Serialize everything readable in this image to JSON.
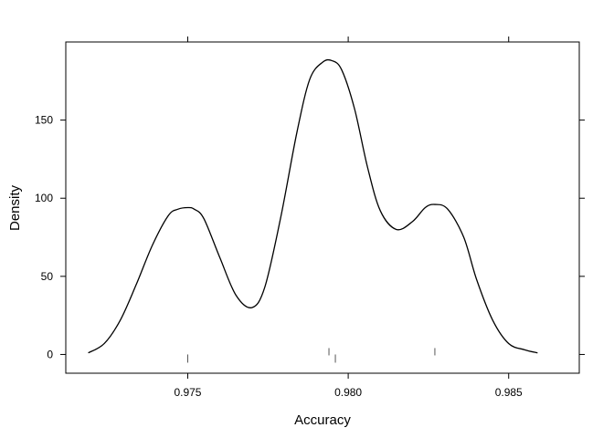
{
  "chart_data": {
    "type": "line",
    "title": "",
    "xlabel": "Accuracy",
    "ylabel": "Density",
    "xlim": [
      0.9712,
      0.9872
    ],
    "ylim": [
      -12,
      200
    ],
    "x_ticks": [
      0.975,
      0.98,
      0.985
    ],
    "x_tick_labels": [
      "0.975",
      "0.980",
      "0.985"
    ],
    "y_ticks": [
      0,
      50,
      100,
      150
    ],
    "y_tick_labels": [
      "0",
      "50",
      "100",
      "150"
    ],
    "grid": false,
    "legend": "none",
    "series": [
      {
        "x": [
          0.9719,
          0.9724,
          0.9729,
          0.9734,
          0.9739,
          0.9744,
          0.9747,
          0.975,
          0.9752,
          0.9755,
          0.976,
          0.9765,
          0.977,
          0.9774,
          0.9779,
          0.9784,
          0.9788,
          0.9792,
          0.9795,
          0.9798,
          0.9802,
          0.9806,
          0.981,
          0.9815,
          0.982,
          0.9824,
          0.9827,
          0.9831,
          0.9836,
          0.984,
          0.9845,
          0.985,
          0.9855,
          0.9859
        ],
        "y": [
          1,
          7,
          22,
          45,
          70,
          89,
          93,
          94,
          93,
          87,
          62,
          38,
          30,
          43,
          88,
          142,
          176,
          187,
          188,
          182,
          157,
          120,
          92,
          80,
          85,
          94,
          96,
          93,
          75,
          48,
          22,
          7,
          3,
          1
        ]
      }
    ],
    "rug": [
      {
        "x": 0.975,
        "side": "bottom"
      },
      {
        "x": 0.9794,
        "side": "top"
      },
      {
        "x": 0.9796,
        "side": "bottom"
      },
      {
        "x": 0.9827,
        "side": "top"
      }
    ]
  }
}
